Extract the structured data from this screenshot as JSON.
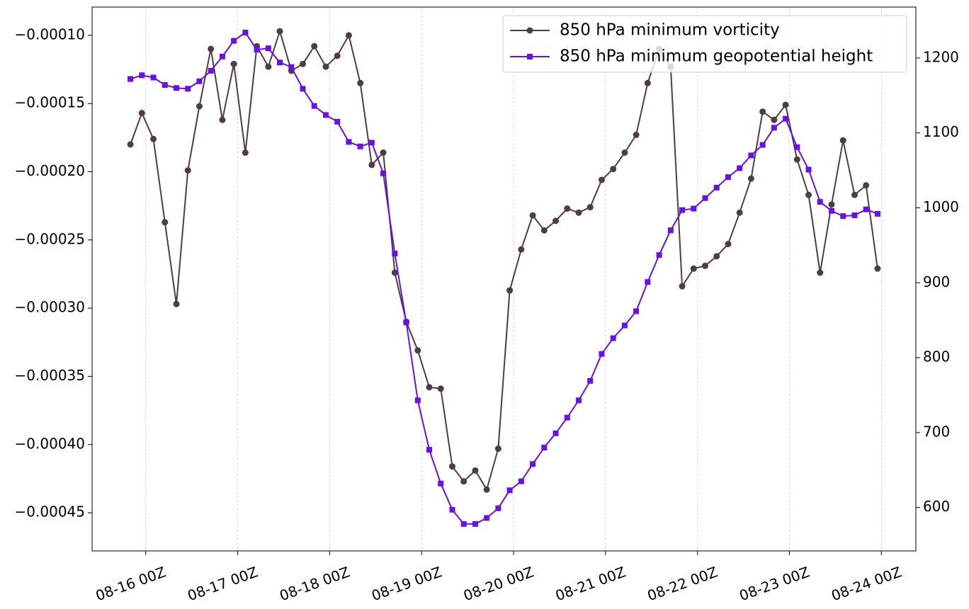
{
  "chart_data": {
    "type": "line",
    "x": [
      "08-15 20Z",
      "08-15 23Z",
      "08-16 02Z",
      "08-16 05Z",
      "08-16 08Z",
      "08-16 11Z",
      "08-16 14Z",
      "08-16 17Z",
      "08-16 20Z",
      "08-16 23Z",
      "08-17 02Z",
      "08-17 05Z",
      "08-17 08Z",
      "08-17 11Z",
      "08-17 14Z",
      "08-17 17Z",
      "08-17 20Z",
      "08-17 23Z",
      "08-18 02Z",
      "08-18 05Z",
      "08-18 08Z",
      "08-18 11Z",
      "08-18 14Z",
      "08-18 17Z",
      "08-18 20Z",
      "08-18 23Z",
      "08-19 02Z",
      "08-19 05Z",
      "08-19 08Z",
      "08-19 11Z",
      "08-19 14Z",
      "08-19 17Z",
      "08-19 20Z",
      "08-19 23Z",
      "08-20 02Z",
      "08-20 05Z",
      "08-20 08Z",
      "08-20 11Z",
      "08-20 14Z",
      "08-20 17Z",
      "08-20 20Z",
      "08-20 23Z",
      "08-21 02Z",
      "08-21 05Z",
      "08-21 08Z",
      "08-21 11Z",
      "08-21 14Z",
      "08-21 17Z",
      "08-21 20Z",
      "08-21 23Z",
      "08-22 02Z",
      "08-22 05Z",
      "08-22 08Z",
      "08-22 11Z",
      "08-22 14Z",
      "08-22 17Z",
      "08-22 20Z",
      "08-22 23Z",
      "08-23 02Z",
      "08-23 05Z",
      "08-23 08Z",
      "08-23 11Z",
      "08-23 14Z",
      "08-23 17Z",
      "08-23 20Z",
      "08-23 23Z"
    ],
    "series": [
      {
        "name": "850 hPa minimum vorticity",
        "color": "#4f3d3f",
        "marker": "circle",
        "axis": "y",
        "values": [
          -0.00018,
          -0.000157,
          -0.000176,
          -0.000237,
          -0.000297,
          -0.000199,
          -0.000152,
          -0.00011,
          -0.000162,
          -0.000121,
          -0.000186,
          -0.000108,
          -0.000123,
          -9.7e-05,
          -0.000126,
          -0.000121,
          -0.000108,
          -0.000123,
          -0.000115,
          -0.0001,
          -0.000135,
          -0.000195,
          -0.000186,
          -0.000274,
          -0.00031,
          -0.000331,
          -0.000358,
          -0.000359,
          -0.000416,
          -0.000427,
          -0.000419,
          -0.000433,
          -0.000403,
          -0.000287,
          -0.000257,
          -0.000232,
          -0.000243,
          -0.000236,
          -0.000227,
          -0.00023,
          -0.000226,
          -0.000206,
          -0.000198,
          -0.000186,
          -0.000173,
          -0.000135,
          -0.00011,
          -0.000123,
          -0.000284,
          -0.000271,
          -0.000269,
          -0.000262,
          -0.000253,
          -0.00023,
          -0.000205,
          -0.000156,
          -0.000162,
          -0.000151,
          -0.000191,
          -0.000217,
          -0.000274,
          -0.000224,
          -0.000177,
          -0.000217,
          -0.00021,
          -0.000271
        ]
      },
      {
        "name": "850 hPa minimum geopotential height",
        "color": "#6a10e4",
        "marker": "square",
        "axis": "y2",
        "values": [
          1172,
          1177,
          1174,
          1164,
          1160,
          1159,
          1169,
          1183,
          1202,
          1223,
          1234,
          1211,
          1213,
          1194,
          1188,
          1159,
          1136,
          1124,
          1115,
          1088,
          1082,
          1087,
          1046,
          939,
          847,
          743,
          677,
          632,
          597,
          578,
          578,
          586,
          599,
          623,
          635,
          658,
          680,
          699,
          720,
          743,
          769,
          805,
          826,
          843,
          862,
          901,
          937,
          970,
          997,
          999,
          1013,
          1027,
          1041,
          1053,
          1070,
          1084,
          1107,
          1119,
          1081,
          1051,
          1008,
          996,
          989,
          990,
          998,
          992
        ]
      }
    ],
    "xlim": [
      "08-15 10Z",
      "08-24 09Z"
    ],
    "xticks": [
      "08-16 00Z",
      "08-17 00Z",
      "08-18 00Z",
      "08-19 00Z",
      "08-20 00Z",
      "08-21 00Z",
      "08-22 00Z",
      "08-23 00Z",
      "08-24 00Z"
    ],
    "ylim": [
      -0.000478,
      -7.93e-05
    ],
    "yticks": [
      {
        "value": -0.00045,
        "label": "−0.00045"
      },
      {
        "value": -0.0004,
        "label": "−0.00040"
      },
      {
        "value": -0.00035,
        "label": "−0.00035"
      },
      {
        "value": -0.0003,
        "label": "−0.00030"
      },
      {
        "value": -0.00025,
        "label": "−0.00025"
      },
      {
        "value": -0.0002,
        "label": "−0.00020"
      },
      {
        "value": -0.00015,
        "label": "−0.00015"
      },
      {
        "value": -0.0001,
        "label": "−0.00010"
      }
    ],
    "y2lim": [
      542,
      1268
    ],
    "y2ticks": [
      600,
      700,
      800,
      900,
      1000,
      1100,
      1200
    ],
    "grid": "x",
    "legend": "upper right"
  }
}
